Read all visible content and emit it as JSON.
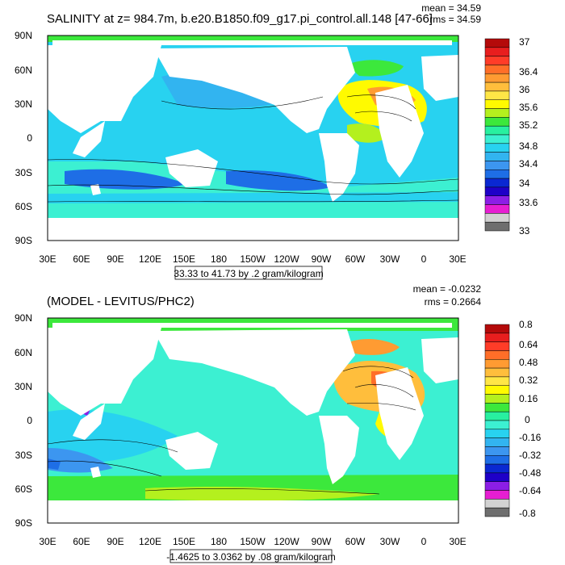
{
  "panels": [
    {
      "title": "SALINITY at z= 984.7m, b.e20.B1850.f09_g17.pi_control.all.148 [47-66]",
      "mean": "mean = 34.59",
      "rms": "rms = 34.59",
      "info": "33.33 to 41.73 by .2 gram/kilogram",
      "lat_ticks": [
        "90N",
        "60N",
        "30N",
        "0",
        "30S",
        "60S",
        "90S"
      ],
      "lon_ticks": [
        "30E",
        "60E",
        "90E",
        "120E",
        "150E",
        "180",
        "150W",
        "120W",
        "90W",
        "60W",
        "30W",
        "0",
        "30E"
      ],
      "colorbar_labels": [
        "37",
        "36.4",
        "36",
        "35.6",
        "35.2",
        "34.8",
        "34.4",
        "34",
        "33.6",
        "33"
      ],
      "colorbar_colors": [
        "#b40a0a",
        "#e81e1e",
        "#ff3c28",
        "#ff6e28",
        "#ff9b32",
        "#ffbe3c",
        "#ffe646",
        "#fffa00",
        "#b4f01e",
        "#3ce83c",
        "#28f0a0",
        "#3cf0d2",
        "#28d2f0",
        "#32b4f0",
        "#3c96f0",
        "#1e6ee6",
        "#0a28d2",
        "#1e00c8",
        "#8c1ee6",
        "#e61ed2",
        "#d2d2d2",
        "#6e6e6e"
      ]
    },
    {
      "title": "(MODEL - LEVITUS/PHC2)",
      "mean": "mean = -0.0232",
      "rms": "rms = 0.2664",
      "info": "-1.4625 to 3.0362 by .08 gram/kilogram",
      "lat_ticks": [
        "90N",
        "60N",
        "30N",
        "0",
        "30S",
        "60S",
        "90S"
      ],
      "lon_ticks": [
        "30E",
        "60E",
        "90E",
        "120E",
        "150E",
        "180",
        "150W",
        "120W",
        "90W",
        "60W",
        "30W",
        "0",
        "30E"
      ],
      "colorbar_labels": [
        "0.8",
        "0.64",
        "0.48",
        "0.32",
        "0.16",
        "0",
        "-0.16",
        "-0.32",
        "-0.48",
        "-0.64",
        "-0.8"
      ],
      "colorbar_colors": [
        "#b40a0a",
        "#e81e1e",
        "#ff3c28",
        "#ff6e28",
        "#ff9b32",
        "#ffbe3c",
        "#ffe646",
        "#fffa00",
        "#b4f01e",
        "#3ce83c",
        "#28f0a0",
        "#3cf0d2",
        "#28d2f0",
        "#32b4f0",
        "#3c96f0",
        "#1e6ee6",
        "#0a28d2",
        "#1e00c8",
        "#8c1ee6",
        "#e61ed2",
        "#d2d2d2",
        "#6e6e6e"
      ]
    }
  ],
  "colors": {
    "land": "#ffffff",
    "frame": "#000000"
  }
}
